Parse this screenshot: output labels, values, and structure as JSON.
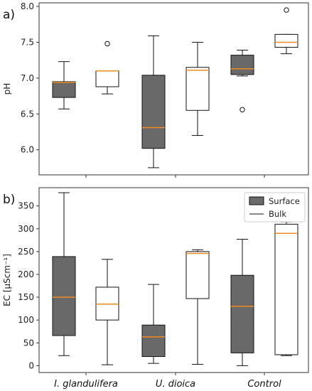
{
  "colors": {
    "surface_fill": "#6e6e6e",
    "bulk_fill": "#ffffff",
    "median": "#f08a24",
    "axis": "#333333"
  },
  "chart_data": [
    {
      "type": "boxplot",
      "panel_label": "a)",
      "ylabel": "pH",
      "ylim": [
        5.65,
        8.05
      ],
      "yticks": [
        "6.0",
        "6.5",
        "7.0",
        "7.5",
        "8.0"
      ],
      "categories": [
        "I. glandulifera",
        "U. dioica",
        "Control"
      ],
      "series": [
        {
          "name": "Surface",
          "boxes": [
            {
              "category": "I. glandulifera",
              "whisker_low": 6.57,
              "q1": 6.73,
              "median": 6.94,
              "q3": 6.95,
              "whisker_high": 7.23,
              "outliers": []
            },
            {
              "category": "U. dioica",
              "whisker_low": 5.75,
              "q1": 6.02,
              "median": 6.31,
              "q3": 7.04,
              "whisker_high": 7.59,
              "outliers": []
            },
            {
              "category": "Control",
              "whisker_low": 7.03,
              "q1": 7.05,
              "median": 7.13,
              "q3": 7.32,
              "whisker_high": 7.39,
              "outliers": [
                6.56
              ]
            }
          ]
        },
        {
          "name": "Bulk",
          "boxes": [
            {
              "category": "I. glandulifera",
              "whisker_low": 6.78,
              "q1": 6.88,
              "median": 7.1,
              "q3": 7.1,
              "whisker_high": 7.1,
              "outliers": [
                7.48
              ]
            },
            {
              "category": "U. dioica",
              "whisker_low": 6.2,
              "q1": 6.55,
              "median": 7.11,
              "q3": 7.15,
              "whisker_high": 7.5,
              "outliers": []
            },
            {
              "category": "Control",
              "whisker_low": 7.34,
              "q1": 7.43,
              "median": 7.5,
              "q3": 7.61,
              "whisker_high": 7.61,
              "outliers": [
                7.95
              ]
            }
          ]
        }
      ]
    },
    {
      "type": "boxplot",
      "panel_label": "b)",
      "ylabel": "EC [μScm⁻¹]",
      "ylim": [
        -15,
        390
      ],
      "yticks": [
        "0",
        "50",
        "100",
        "150",
        "200",
        "250",
        "300",
        "350"
      ],
      "categories": [
        "I. glandulifera",
        "U. dioica",
        "Control"
      ],
      "legend": {
        "position": "top-right",
        "entries": [
          "Surface",
          "Bulk"
        ]
      },
      "series": [
        {
          "name": "Surface",
          "boxes": [
            {
              "category": "I. glandulifera",
              "whisker_low": 22,
              "q1": 66,
              "median": 150,
              "q3": 239,
              "whisker_high": 379,
              "outliers": []
            },
            {
              "category": "U. dioica",
              "whisker_low": 5,
              "q1": 20,
              "median": 63,
              "q3": 89,
              "whisker_high": 178,
              "outliers": []
            },
            {
              "category": "Control",
              "whisker_low": 0,
              "q1": 28,
              "median": 130,
              "q3": 198,
              "whisker_high": 277,
              "outliers": []
            }
          ]
        },
        {
          "name": "Bulk",
          "boxes": [
            {
              "category": "I. glandulifera",
              "whisker_low": 2,
              "q1": 100,
              "median": 135,
              "q3": 172,
              "whisker_high": 233,
              "outliers": []
            },
            {
              "category": "U. dioica",
              "whisker_low": 3,
              "q1": 147,
              "median": 246,
              "q3": 250,
              "whisker_high": 254,
              "outliers": []
            },
            {
              "category": "Control",
              "whisker_low": 22,
              "q1": 24,
              "median": 290,
              "q3": 310,
              "whisker_high": 315,
              "outliers": []
            }
          ]
        }
      ]
    }
  ]
}
